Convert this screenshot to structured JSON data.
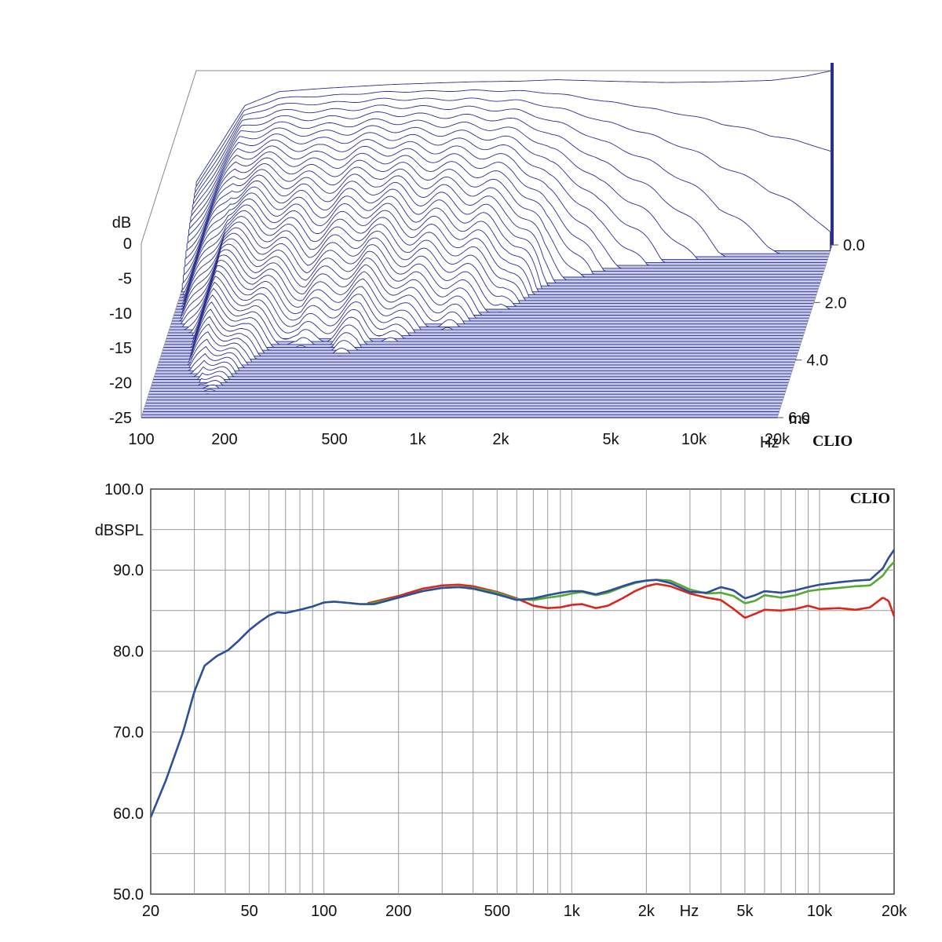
{
  "chart_data": [
    {
      "type": "waterfall",
      "brand": "CLIO",
      "x_unit": "Hz",
      "z_unit": "ms",
      "y_unit": "dB",
      "x_range": [
        100,
        20000
      ],
      "y_range": [
        -25,
        0
      ],
      "z_range": [
        0,
        6
      ],
      "x_ticks": [
        {
          "value": 100,
          "label": "100"
        },
        {
          "value": 200,
          "label": "200"
        },
        {
          "value": 500,
          "label": "500"
        },
        {
          "value": 1000,
          "label": "1k"
        },
        {
          "value": 2000,
          "label": "2k"
        },
        {
          "value": 5000,
          "label": "5k"
        },
        {
          "value": 10000,
          "label": "10k"
        },
        {
          "value": 20000,
          "label": "20k"
        }
      ],
      "y_ticks": [
        {
          "value": 0,
          "label": "0"
        },
        {
          "value": -5,
          "label": "-5"
        },
        {
          "value": -10,
          "label": "-10"
        },
        {
          "value": -15,
          "label": "-15"
        },
        {
          "value": -20,
          "label": "-20"
        },
        {
          "value": -25,
          "label": "-25"
        }
      ],
      "z_ticks": [
        {
          "value": 0,
          "label": "0.0"
        },
        {
          "value": 2,
          "label": "2.0"
        },
        {
          "value": 4,
          "label": "4.0"
        },
        {
          "value": 6,
          "label": "6.0"
        }
      ],
      "slices": 60,
      "line_color": "#2a2f8f",
      "initial_response_db": [
        [
          100,
          -16
        ],
        [
          150,
          -5
        ],
        [
          200,
          -3
        ],
        [
          300,
          -2.5
        ],
        [
          500,
          -2.0
        ],
        [
          700,
          -1.8
        ],
        [
          1000,
          -1.6
        ],
        [
          1500,
          -1.5
        ],
        [
          2000,
          -1.3
        ],
        [
          3000,
          -1.5
        ],
        [
          5000,
          -1.7
        ],
        [
          8000,
          -1.6
        ],
        [
          12000,
          -1.4
        ],
        [
          16000,
          -0.8
        ],
        [
          20000,
          0
        ]
      ],
      "decay_time_ms": [
        [
          100,
          4.5
        ],
        [
          150,
          5.8
        ],
        [
          200,
          4.2
        ],
        [
          300,
          3.3
        ],
        [
          500,
          3.6
        ],
        [
          700,
          3.0
        ],
        [
          1000,
          2.7
        ],
        [
          1500,
          2.2
        ],
        [
          2000,
          1.4
        ],
        [
          3000,
          0.9
        ],
        [
          5000,
          0.6
        ],
        [
          8000,
          0.4
        ],
        [
          12000,
          0.3
        ],
        [
          20000,
          0.2
        ]
      ]
    },
    {
      "type": "line",
      "brand": "CLIO",
      "ylabel": "dBSPL",
      "x_unit": "Hz",
      "xscale": "log",
      "xlim": [
        20,
        20000
      ],
      "ylim": [
        50,
        100
      ],
      "grid": true,
      "x_ticks": [
        {
          "value": 20,
          "label": "20"
        },
        {
          "value": 50,
          "label": "50"
        },
        {
          "value": 100,
          "label": "100"
        },
        {
          "value": 200,
          "label": "200"
        },
        {
          "value": 500,
          "label": "500"
        },
        {
          "value": 1000,
          "label": "1k"
        },
        {
          "value": 2000,
          "label": "2k"
        },
        {
          "value": 5000,
          "label": "5k"
        },
        {
          "value": 10000,
          "label": "10k"
        },
        {
          "value": 20000,
          "label": "20k"
        }
      ],
      "y_ticks": [
        {
          "value": 100,
          "label": "100.0"
        },
        {
          "value": 90,
          "label": "90.0"
        },
        {
          "value": 80,
          "label": "80.0"
        },
        {
          "value": 70,
          "label": "70.0"
        },
        {
          "value": 60,
          "label": "60.0"
        },
        {
          "value": 50,
          "label": "50.0"
        }
      ],
      "series": [
        {
          "color": "#d8281e",
          "points": [
            [
              150,
              85.9
            ],
            [
              200,
              86.8
            ],
            [
              250,
              87.7
            ],
            [
              300,
              88.1
            ],
            [
              350,
              88.2
            ],
            [
              400,
              88.0
            ],
            [
              500,
              87.3
            ],
            [
              600,
              86.5
            ],
            [
              700,
              85.6
            ],
            [
              800,
              85.3
            ],
            [
              900,
              85.4
            ],
            [
              1000,
              85.7
            ],
            [
              1100,
              85.8
            ],
            [
              1250,
              85.3
            ],
            [
              1400,
              85.6
            ],
            [
              1600,
              86.5
            ],
            [
              1800,
              87.4
            ],
            [
              2000,
              88.0
            ],
            [
              2200,
              88.3
            ],
            [
              2500,
              88.0
            ],
            [
              3000,
              87.1
            ],
            [
              3500,
              86.6
            ],
            [
              4000,
              86.3
            ],
            [
              4500,
              85.2
            ],
            [
              5000,
              84.1
            ],
            [
              5500,
              84.6
            ],
            [
              6000,
              85.1
            ],
            [
              7000,
              85.0
            ],
            [
              8000,
              85.2
            ],
            [
              9000,
              85.6
            ],
            [
              10000,
              85.2
            ],
            [
              12000,
              85.3
            ],
            [
              14000,
              85.1
            ],
            [
              16000,
              85.4
            ],
            [
              18000,
              86.6
            ],
            [
              19000,
              86.2
            ],
            [
              20000,
              84.3
            ]
          ]
        },
        {
          "color": "#55a833",
          "points": [
            [
              150,
              85.8
            ],
            [
              200,
              86.6
            ],
            [
              250,
              87.4
            ],
            [
              300,
              87.8
            ],
            [
              350,
              87.9
            ],
            [
              400,
              87.8
            ],
            [
              500,
              87.2
            ],
            [
              600,
              86.4
            ],
            [
              700,
              86.3
            ],
            [
              800,
              86.6
            ],
            [
              900,
              86.8
            ],
            [
              1000,
              87.1
            ],
            [
              1100,
              87.3
            ],
            [
              1250,
              86.9
            ],
            [
              1400,
              87.2
            ],
            [
              1600,
              87.9
            ],
            [
              1800,
              88.4
            ],
            [
              2000,
              88.7
            ],
            [
              2200,
              88.8
            ],
            [
              2500,
              88.7
            ],
            [
              3000,
              87.6
            ],
            [
              3500,
              87.1
            ],
            [
              4000,
              87.2
            ],
            [
              4500,
              86.8
            ],
            [
              5000,
              85.9
            ],
            [
              5500,
              86.2
            ],
            [
              6000,
              86.9
            ],
            [
              7000,
              86.6
            ],
            [
              8000,
              86.9
            ],
            [
              9000,
              87.4
            ],
            [
              10000,
              87.6
            ],
            [
              12000,
              87.8
            ],
            [
              14000,
              88.0
            ],
            [
              16000,
              88.1
            ],
            [
              18000,
              89.3
            ],
            [
              19000,
              90.3
            ],
            [
              20000,
              91.0
            ]
          ]
        },
        {
          "color": "#2d4f9a",
          "points": [
            [
              20,
              59.5
            ],
            [
              23,
              64.0
            ],
            [
              27,
              70.0
            ],
            [
              30,
              75.0
            ],
            [
              33,
              78.2
            ],
            [
              37,
              79.4
            ],
            [
              41,
              80.1
            ],
            [
              45,
              81.2
            ],
            [
              50,
              82.6
            ],
            [
              55,
              83.6
            ],
            [
              60,
              84.4
            ],
            [
              65,
              84.8
            ],
            [
              70,
              84.7
            ],
            [
              80,
              85.1
            ],
            [
              90,
              85.5
            ],
            [
              100,
              86.0
            ],
            [
              110,
              86.1
            ],
            [
              120,
              86.0
            ],
            [
              140,
              85.8
            ],
            [
              160,
              85.8
            ],
            [
              200,
              86.6
            ],
            [
              250,
              87.4
            ],
            [
              300,
              87.8
            ],
            [
              350,
              87.9
            ],
            [
              400,
              87.7
            ],
            [
              500,
              87.0
            ],
            [
              600,
              86.3
            ],
            [
              700,
              86.5
            ],
            [
              800,
              86.9
            ],
            [
              900,
              87.2
            ],
            [
              1000,
              87.4
            ],
            [
              1100,
              87.4
            ],
            [
              1250,
              87.0
            ],
            [
              1400,
              87.4
            ],
            [
              1600,
              88.0
            ],
            [
              1800,
              88.5
            ],
            [
              2000,
              88.7
            ],
            [
              2200,
              88.8
            ],
            [
              2500,
              88.4
            ],
            [
              3000,
              87.3
            ],
            [
              3500,
              87.2
            ],
            [
              4000,
              87.9
            ],
            [
              4500,
              87.5
            ],
            [
              5000,
              86.5
            ],
            [
              5500,
              86.9
            ],
            [
              6000,
              87.4
            ],
            [
              7000,
              87.2
            ],
            [
              8000,
              87.5
            ],
            [
              9000,
              87.9
            ],
            [
              10000,
              88.2
            ],
            [
              12000,
              88.5
            ],
            [
              14000,
              88.7
            ],
            [
              16000,
              88.8
            ],
            [
              18000,
              90.2
            ],
            [
              19000,
              91.5
            ],
            [
              20000,
              92.5
            ]
          ]
        }
      ]
    }
  ]
}
